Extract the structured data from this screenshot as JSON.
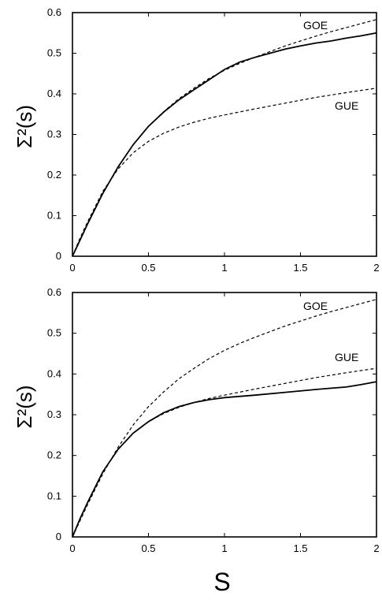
{
  "chart_data": [
    {
      "type": "line",
      "title": "",
      "xlabel": "",
      "ylabel": "Σ²(s)",
      "xlim": [
        0,
        2
      ],
      "ylim": [
        0,
        0.6
      ],
      "xticks": [
        "0",
        "0.5",
        "1",
        "1.5",
        "2"
      ],
      "yticks": [
        "0",
        "0.1",
        "0.2",
        "0.3",
        "0.4",
        "0.5",
        "0.6"
      ],
      "grid": false,
      "series": [
        {
          "name": "",
          "style": "solid",
          "x": [
            0,
            0.05,
            0.1,
            0.2,
            0.3,
            0.4,
            0.5,
            0.6,
            0.7,
            0.8,
            0.9,
            1.0,
            1.1,
            1.2,
            1.3,
            1.4,
            1.5,
            1.6,
            1.7,
            1.8,
            1.9,
            2.0
          ],
          "y": [
            0,
            0.04,
            0.08,
            0.155,
            0.22,
            0.275,
            0.32,
            0.355,
            0.385,
            0.41,
            0.435,
            0.46,
            0.478,
            0.49,
            0.5,
            0.51,
            0.518,
            0.525,
            0.53,
            0.537,
            0.543,
            0.55
          ]
        },
        {
          "name": "GOE",
          "style": "dashed",
          "x": [
            0,
            0.05,
            0.1,
            0.2,
            0.3,
            0.4,
            0.5,
            0.6,
            0.7,
            0.8,
            0.9,
            1.0,
            1.1,
            1.2,
            1.3,
            1.4,
            1.5,
            1.6,
            1.7,
            1.8,
            1.9,
            2.0
          ],
          "y": [
            0,
            0.04,
            0.08,
            0.155,
            0.22,
            0.275,
            0.32,
            0.356,
            0.388,
            0.414,
            0.438,
            0.458,
            0.475,
            0.49,
            0.504,
            0.518,
            0.53,
            0.542,
            0.553,
            0.563,
            0.573,
            0.583
          ]
        },
        {
          "name": "GUE",
          "style": "dashed",
          "x": [
            0,
            0.05,
            0.1,
            0.2,
            0.3,
            0.4,
            0.5,
            0.6,
            0.7,
            0.8,
            0.9,
            1.0,
            1.2,
            1.4,
            1.6,
            1.8,
            2.0
          ],
          "y": [
            0,
            0.045,
            0.085,
            0.16,
            0.215,
            0.255,
            0.283,
            0.303,
            0.318,
            0.33,
            0.34,
            0.348,
            0.363,
            0.377,
            0.391,
            0.403,
            0.414
          ]
        }
      ]
    },
    {
      "type": "line",
      "title": "",
      "xlabel": "S",
      "ylabel": "Σ²(s)",
      "xlim": [
        0,
        2
      ],
      "ylim": [
        0,
        0.6
      ],
      "xticks": [
        "0",
        "0.5",
        "1",
        "1.5",
        "2"
      ],
      "yticks": [
        "0",
        "0.1",
        "0.2",
        "0.3",
        "0.4",
        "0.5",
        "0.6"
      ],
      "grid": false,
      "series": [
        {
          "name": "",
          "style": "solid",
          "x": [
            0,
            0.05,
            0.1,
            0.2,
            0.3,
            0.4,
            0.5,
            0.6,
            0.7,
            0.8,
            0.9,
            1.0,
            1.2,
            1.4,
            1.6,
            1.7,
            1.8,
            1.9,
            2.0
          ],
          "y": [
            0,
            0.045,
            0.085,
            0.16,
            0.215,
            0.255,
            0.283,
            0.305,
            0.32,
            0.33,
            0.337,
            0.342,
            0.348,
            0.355,
            0.362,
            0.365,
            0.368,
            0.374,
            0.381
          ]
        },
        {
          "name": "GOE",
          "style": "dashed",
          "x": [
            0,
            0.05,
            0.1,
            0.2,
            0.3,
            0.4,
            0.5,
            0.6,
            0.7,
            0.8,
            0.9,
            1.0,
            1.1,
            1.2,
            1.3,
            1.4,
            1.5,
            1.6,
            1.7,
            1.8,
            1.9,
            2.0
          ],
          "y": [
            0,
            0.04,
            0.08,
            0.155,
            0.22,
            0.275,
            0.32,
            0.356,
            0.388,
            0.414,
            0.438,
            0.458,
            0.475,
            0.49,
            0.504,
            0.518,
            0.53,
            0.542,
            0.553,
            0.563,
            0.573,
            0.583
          ]
        },
        {
          "name": "GUE",
          "style": "dashed",
          "x": [
            0,
            0.05,
            0.1,
            0.2,
            0.3,
            0.4,
            0.5,
            0.6,
            0.7,
            0.8,
            0.9,
            1.0,
            1.2,
            1.4,
            1.6,
            1.8,
            2.0
          ],
          "y": [
            0,
            0.045,
            0.085,
            0.16,
            0.215,
            0.255,
            0.283,
            0.303,
            0.318,
            0.33,
            0.34,
            0.348,
            0.363,
            0.377,
            0.391,
            0.403,
            0.414
          ]
        }
      ]
    }
  ]
}
